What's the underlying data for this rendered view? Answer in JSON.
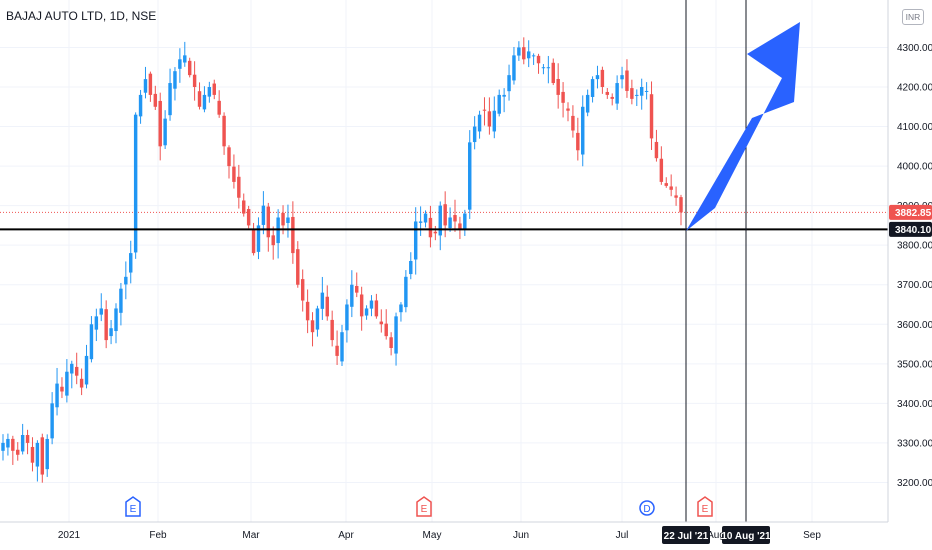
{
  "header": {
    "symbol": "BAJAJ AUTO LTD",
    "interval": "1D",
    "exchange": "NSE",
    "currency": "INR"
  },
  "colors": {
    "up": "#2196f3",
    "down": "#ef5350",
    "support_line": "#000000",
    "arrow": "#2962ff",
    "price_line": "#ef5350",
    "vertical_line": "#131722"
  },
  "chart_data": {
    "type": "candlestick",
    "title": "BAJAJ AUTO LTD, 1D, NSE",
    "xlabel": "",
    "ylabel": "",
    "ylim": [
      3100,
      4420
    ],
    "y_ticks": [
      3200,
      3300,
      3400,
      3500,
      3600,
      3700,
      3800,
      3900,
      4000,
      4100,
      4200,
      4300
    ],
    "x_ticks": [
      "2021",
      "Feb",
      "Mar",
      "Apr",
      "May",
      "Jun",
      "Jul",
      "Aug",
      "Sep"
    ],
    "last_price": "3882.85",
    "support_level": "3840.10",
    "marked_dates": [
      "22 Jul '21",
      "10 Aug '21"
    ],
    "events": [
      {
        "label": "E",
        "date": "late Jan 2021",
        "color": "blue"
      },
      {
        "label": "E",
        "date": "end Apr 2021",
        "color": "red"
      },
      {
        "label": "D",
        "date": "mid Jul 2021",
        "color": "blue"
      },
      {
        "label": "E",
        "date": "late Jul 2021",
        "color": "red"
      }
    ],
    "close_path": [
      3300,
      3310,
      3280,
      3270,
      3320,
      3300,
      3250,
      3300,
      3220,
      3310,
      3400,
      3450,
      3430,
      3480,
      3500,
      3470,
      3440,
      3520,
      3600,
      3620,
      3640,
      3560,
      3590,
      3640,
      3690,
      3720,
      3780,
      4130,
      4180,
      4220,
      4180,
      4150,
      4050,
      4120,
      4210,
      4240,
      4270,
      4280,
      4230,
      4200,
      4150,
      4180,
      4200,
      4180,
      4130,
      4050,
      4000,
      3960,
      3920,
      3880,
      3850,
      3780,
      3850,
      3900,
      3820,
      3800,
      3870,
      3850,
      3870,
      3780,
      3700,
      3660,
      3610,
      3580,
      3640,
      3680,
      3620,
      3560,
      3520,
      3580,
      3650,
      3700,
      3680,
      3620,
      3640,
      3660,
      3620,
      3600,
      3570,
      3540,
      3620,
      3650,
      3720,
      3760,
      3860,
      3860,
      3880,
      3820,
      3830,
      3900,
      3850,
      3870,
      3860,
      3840,
      3880,
      4060,
      4100,
      4130,
      4140,
      4100,
      4140,
      4180,
      4180,
      4230,
      4280,
      4300,
      4270,
      4290,
      4280,
      4260,
      4250,
      4250,
      4210,
      4180,
      4160,
      4140,
      4090,
      4040,
      4150,
      4180,
      4220,
      4230,
      4200,
      4180,
      4170,
      4210,
      4230,
      4190,
      4170,
      4180,
      4200,
      4190,
      4070,
      4020,
      3960,
      3950,
      3940,
      3920,
      3883
    ]
  }
}
